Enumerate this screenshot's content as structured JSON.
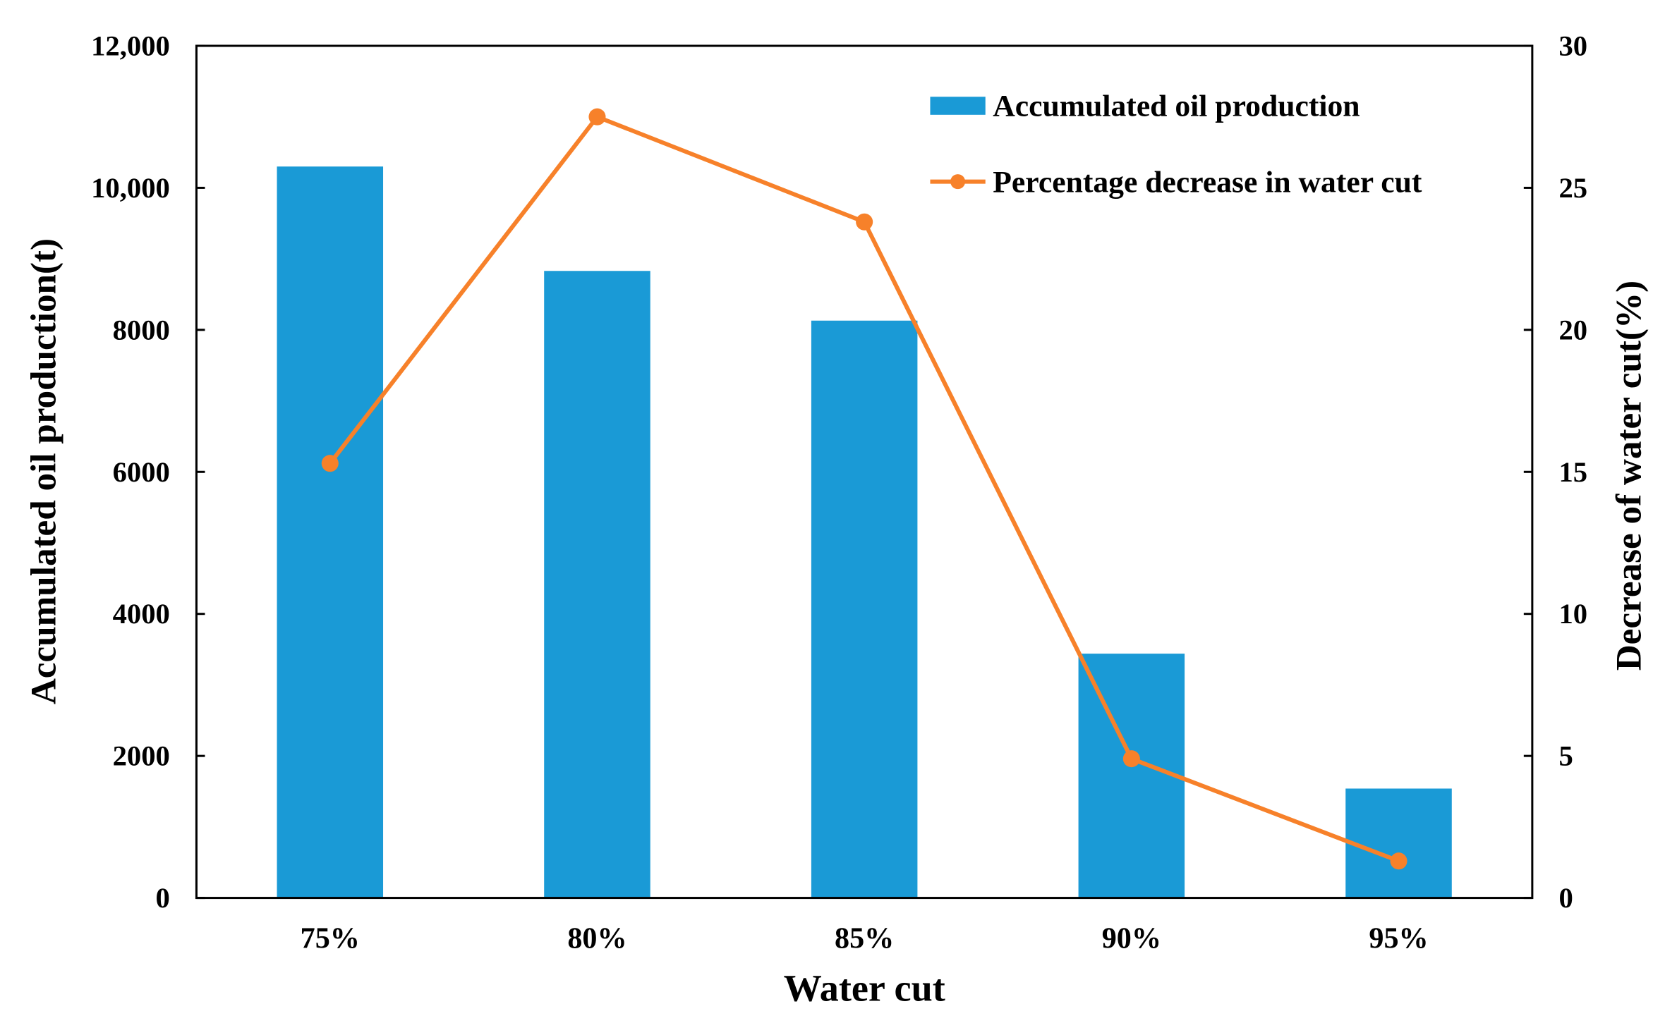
{
  "chart_data": {
    "type": "bar+line",
    "categories": [
      "75%",
      "80%",
      "85%",
      "90%",
      "95%"
    ],
    "xlabel": "Water cut",
    "ylabel": "Accumulated oil production(t)",
    "y2label": "Decrease of water cut(%)",
    "ylim": [
      0,
      12000
    ],
    "y2lim": [
      0,
      30
    ],
    "yticks": [
      "0",
      "2000",
      "4000",
      "6000",
      "8000",
      "10,000",
      "12,000"
    ],
    "y2ticks": [
      "0",
      "5",
      "10",
      "15",
      "20",
      "25",
      "30"
    ],
    "grid": false,
    "legend_position": "top-right",
    "series": [
      {
        "name": "Accumulated oil production",
        "type": "bar",
        "axis": "left",
        "color": "#1a9ad6",
        "values": [
          10300,
          8830,
          8130,
          3440,
          1540
        ]
      },
      {
        "name": "Percentage decrease in water cut",
        "type": "line",
        "axis": "right",
        "color": "#f7812a",
        "values": [
          15.3,
          27.5,
          23.8,
          4.9,
          1.3
        ]
      }
    ]
  }
}
